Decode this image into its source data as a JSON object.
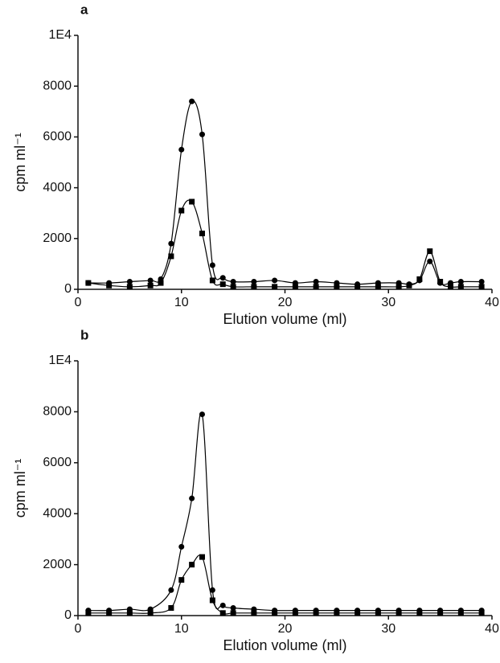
{
  "chart_data": [
    {
      "type": "line",
      "panel_label": "a",
      "xlabel": "Elution volume (ml)",
      "ylabel": "cpm ml⁻¹",
      "xlim": [
        0,
        40
      ],
      "xticks": [
        0,
        10,
        20,
        30,
        40
      ],
      "ylim": [
        0,
        10000
      ],
      "yticks": [
        0,
        2000,
        4000,
        6000,
        8000,
        {
          "value": 10000,
          "label": "1E4"
        }
      ],
      "x": [
        1,
        3,
        5,
        7,
        8,
        9,
        10,
        11,
        12,
        13,
        14,
        15,
        17,
        19,
        21,
        23,
        25,
        27,
        29,
        31,
        32,
        33,
        34,
        35,
        36,
        37,
        39
      ],
      "series": [
        {
          "marker": "circle",
          "color": "#000000",
          "values": [
            250,
            250,
            300,
            350,
            400,
            1800,
            5500,
            7400,
            6100,
            950,
            450,
            300,
            300,
            350,
            250,
            300,
            250,
            200,
            250,
            250,
            200,
            350,
            1100,
            250,
            250,
            300,
            300
          ]
        },
        {
          "marker": "square",
          "color": "#000000",
          "values": [
            250,
            150,
            100,
            150,
            250,
            1300,
            3100,
            3450,
            2200,
            350,
            200,
            100,
            100,
            100,
            100,
            100,
            100,
            100,
            100,
            100,
            150,
            400,
            1500,
            300,
            100,
            100,
            100
          ]
        }
      ]
    },
    {
      "type": "line",
      "panel_label": "b",
      "xlabel": "Elution volume (ml)",
      "ylabel": "cpm ml⁻¹",
      "xlim": [
        0,
        40
      ],
      "xticks": [
        0,
        10,
        20,
        30,
        40
      ],
      "ylim": [
        0,
        10000
      ],
      "yticks": [
        0,
        2000,
        4000,
        6000,
        8000,
        {
          "value": 10000,
          "label": "1E4"
        }
      ],
      "x": [
        1,
        3,
        5,
        7,
        9,
        10,
        11,
        12,
        13,
        14,
        15,
        17,
        19,
        21,
        23,
        25,
        27,
        29,
        31,
        33,
        35,
        37,
        39
      ],
      "series": [
        {
          "marker": "circle",
          "color": "#000000",
          "values": [
            200,
            200,
            250,
            250,
            1000,
            2700,
            4600,
            7900,
            1000,
            400,
            300,
            250,
            200,
            200,
            200,
            200,
            200,
            200,
            200,
            200,
            200,
            200,
            200
          ]
        },
        {
          "marker": "square",
          "color": "#000000",
          "values": [
            100,
            100,
            100,
            100,
            300,
            1400,
            2000,
            2300,
            600,
            100,
            100,
            100,
            100,
            100,
            100,
            100,
            100,
            100,
            100,
            100,
            100,
            100,
            100
          ]
        }
      ]
    }
  ]
}
